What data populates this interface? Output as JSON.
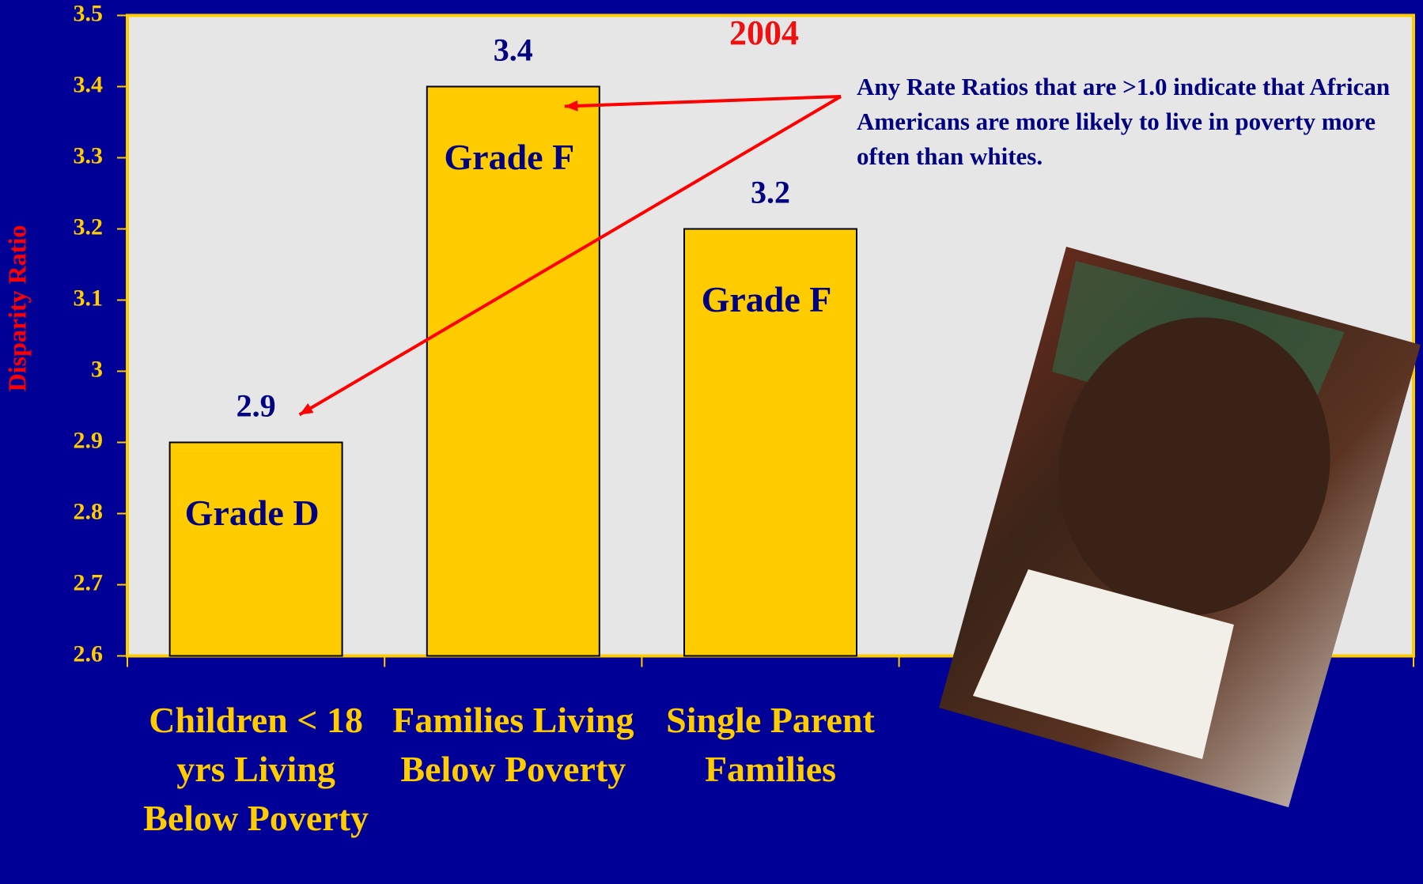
{
  "chart_data": {
    "type": "bar",
    "subtitle": "2004",
    "y_label": "Disparity Ratio",
    "categories": [
      "Children < 18 yrs Living Below Poverty",
      "Families Living Below Poverty",
      "Single Parent Families"
    ],
    "values": [
      2.9,
      3.4,
      3.2
    ],
    "bar_annotations": [
      "Grade D",
      "Grade F",
      "Grade F"
    ],
    "annotation": "Any Rate Ratios that are >1.0 indicate that African Americans are more likely to live in poverty more often than whites.",
    "color": "#ffcc00",
    "ylim": [
      2.6,
      3.5
    ],
    "yticks": [
      2.6,
      2.7,
      2.8,
      2.9,
      3,
      3.1,
      3.2,
      3.3,
      3.4,
      3.5
    ]
  }
}
